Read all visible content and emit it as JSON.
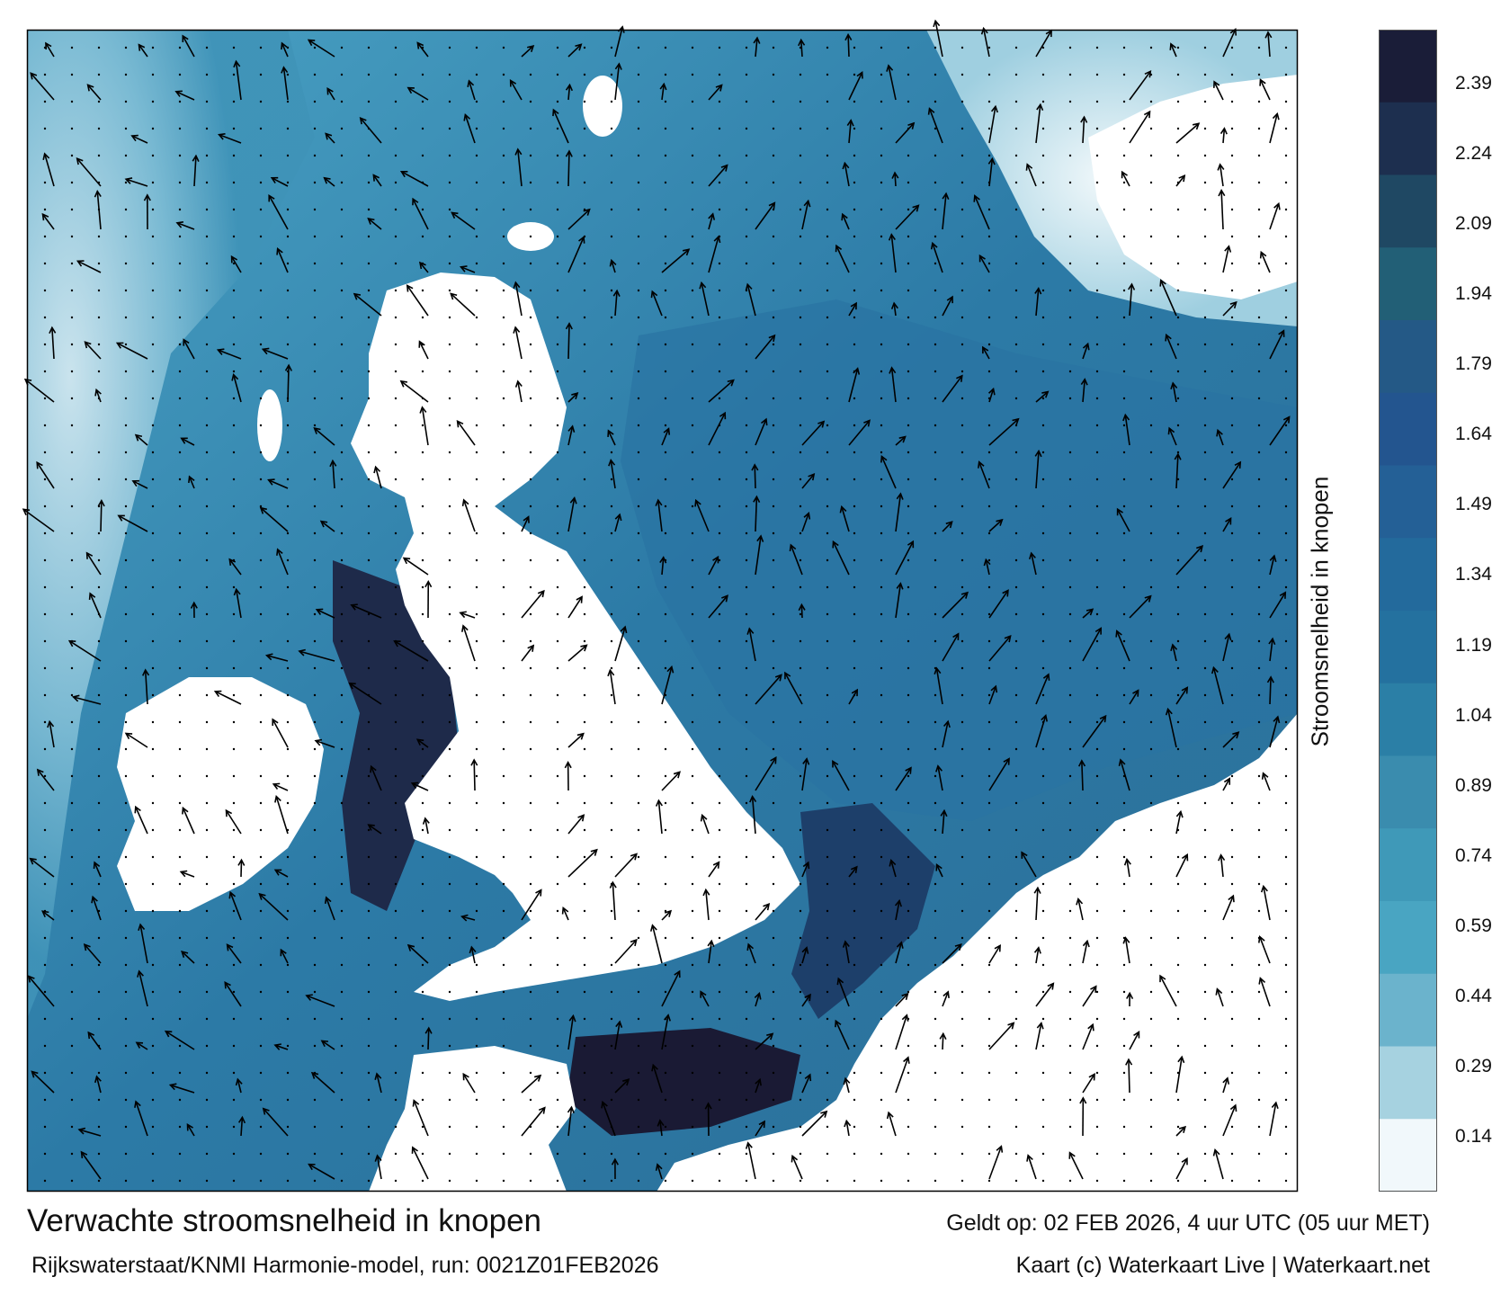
{
  "title": "Verwachte stroomsnelheid in knopen",
  "valid_time": "Geldt op: 02 FEB 2026, 4 uur UTC (05 uur MET)",
  "model_run": "Rijkswaterstaat/KNMI Harmonie-model, run: 0021Z01FEB2026",
  "credit": "Kaart (c) Waterkaart Live | Waterkaart.net",
  "colorbar": {
    "label": "Stroomsnelheid in knopen",
    "ticks": [
      "2.39",
      "2.24",
      "2.09",
      "1.94",
      "1.79",
      "1.64",
      "1.49",
      "1.34",
      "1.19",
      "1.04",
      "0.89",
      "0.74",
      "0.59",
      "0.44",
      "0.29",
      "0.14"
    ],
    "colors": [
      "#1a1d38",
      "#1d2f4f",
      "#1f4863",
      "#225f76",
      "#245986",
      "#23558f",
      "#246096",
      "#236a9c",
      "#24719f",
      "#2b7fa6",
      "#3a8cae",
      "#3f99b8",
      "#49a5c2",
      "#6bb3cc",
      "#a6d2e0",
      "#f1f8fb"
    ]
  },
  "map": {
    "land_color": "#ffffff",
    "sea_light": "#cfe6ef",
    "sea_mid": "#3f93b8",
    "sea_dark": "#1d4f7a",
    "sea_fast": "#1a1a34",
    "arrow_color": "#000000"
  }
}
